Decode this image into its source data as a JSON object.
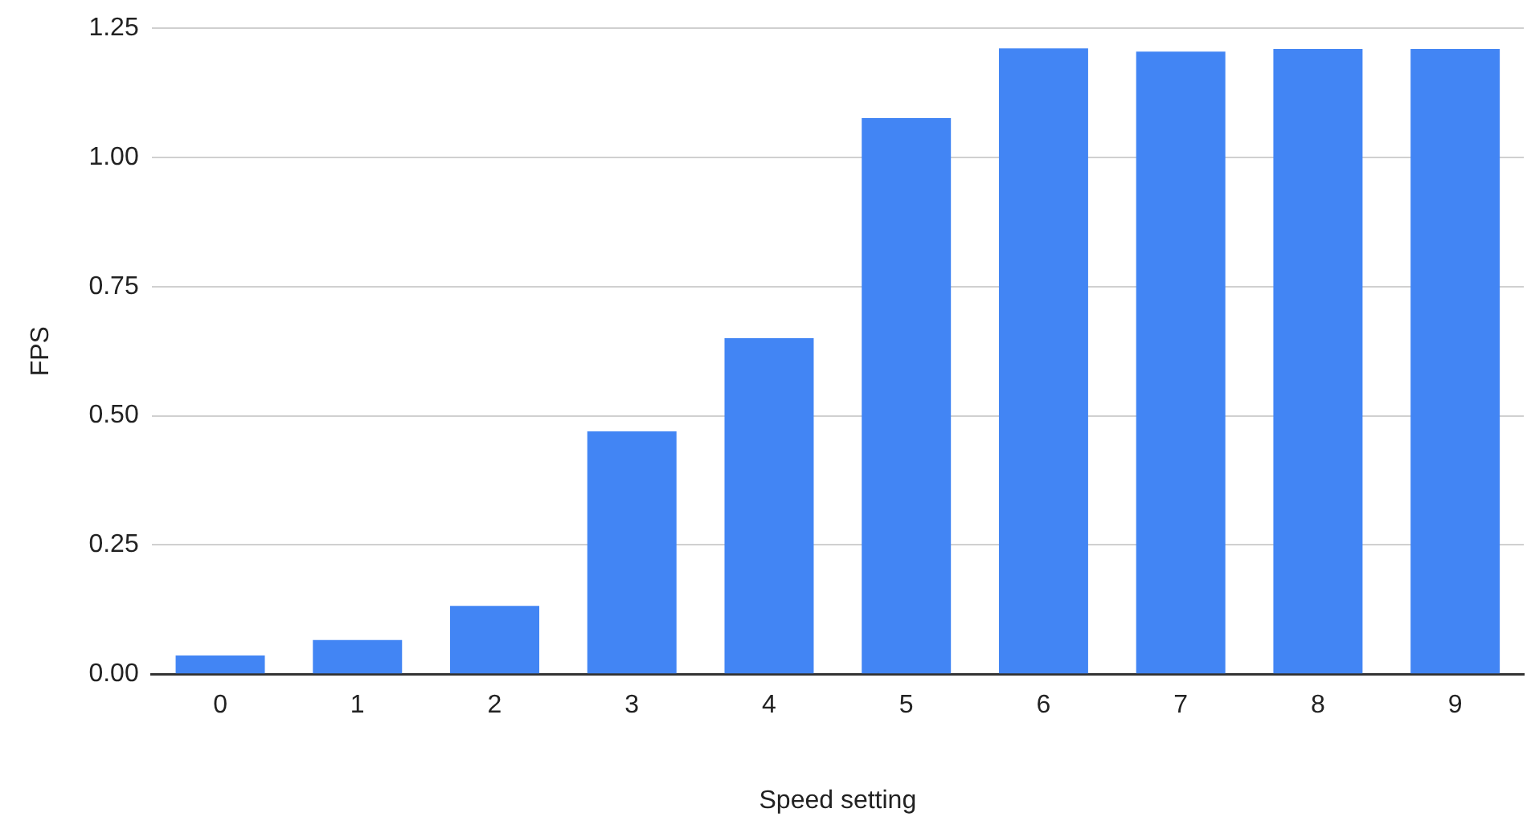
{
  "chart_data": {
    "type": "bar",
    "xlabel": "Speed setting",
    "ylabel": "FPS",
    "categories": [
      "0",
      "1",
      "2",
      "3",
      "4",
      "5",
      "6",
      "7",
      "8",
      "9"
    ],
    "values": [
      0.036,
      0.066,
      0.132,
      0.47,
      0.65,
      1.076,
      1.211,
      1.205,
      1.21,
      1.21
    ],
    "color": "#4285f4",
    "ylim": [
      0,
      1.25
    ],
    "yticks": [
      {
        "value": 0,
        "label": "0.00"
      },
      {
        "value": 0.25,
        "label": "0.25"
      },
      {
        "value": 0.5,
        "label": "0.50"
      },
      {
        "value": 0.75,
        "label": "0.75"
      },
      {
        "value": 1,
        "label": "1.00"
      },
      {
        "value": 1.25,
        "label": "1.25"
      }
    ],
    "grid": "y",
    "legend": false
  }
}
